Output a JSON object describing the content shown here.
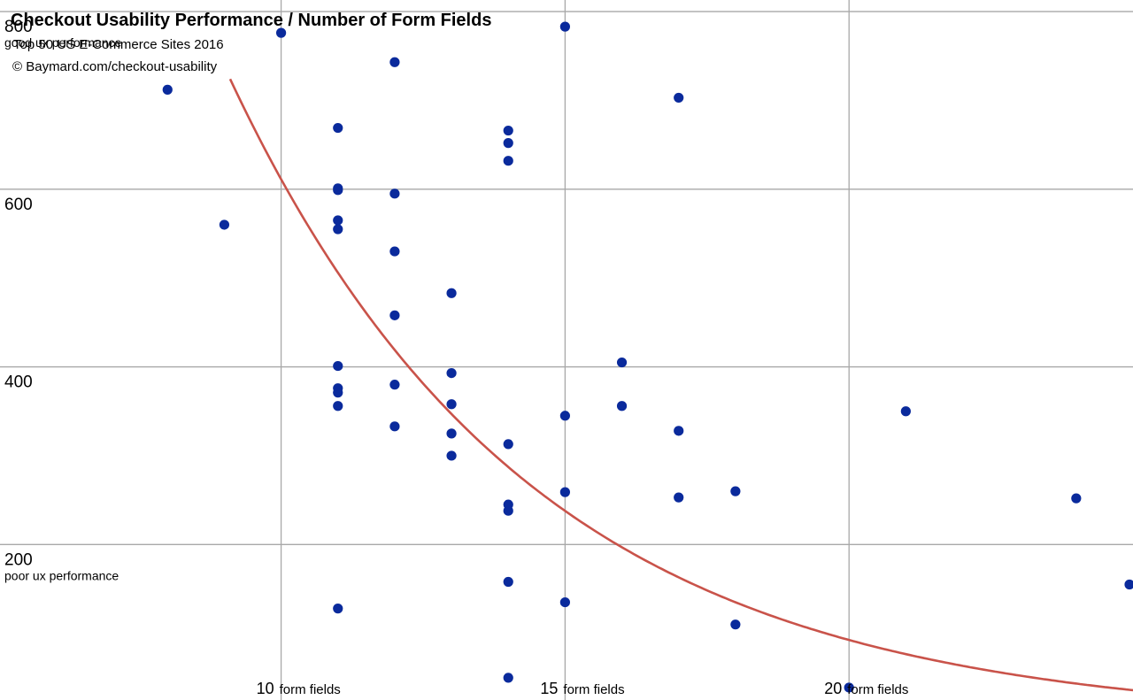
{
  "chart_data": {
    "type": "scatter",
    "title": "Checkout Usability Performance / Number of Form Fields",
    "subtitle": "Top 50 US E-Commerce Sites 2016",
    "credit": "© Baymard.com/checkout-usability",
    "x_ticks": [
      {
        "value": 10,
        "label": "10",
        "unit": "form fields"
      },
      {
        "value": 15,
        "label": "15",
        "unit": "form fields"
      },
      {
        "value": 20,
        "label": "20",
        "unit": "form fields"
      }
    ],
    "y_ticks": [
      {
        "value": 800,
        "label": "800",
        "note": "good ux performance"
      },
      {
        "value": 600,
        "label": "600",
        "note": ""
      },
      {
        "value": 400,
        "label": "400",
        "note": ""
      },
      {
        "value": 200,
        "label": "200",
        "note": "poor ux performance"
      }
    ],
    "xlim": [
      5.05,
      25
    ],
    "ylim": [
      25,
      813
    ],
    "grid": true,
    "point_color": "#0a2a9c",
    "curve_color": "#c9534a",
    "points": [
      [
        8,
        712
      ],
      [
        9,
        560
      ],
      [
        10,
        776
      ],
      [
        11,
        669
      ],
      [
        11,
        601
      ],
      [
        11,
        599
      ],
      [
        11,
        565
      ],
      [
        11,
        555
      ],
      [
        11,
        401
      ],
      [
        11,
        376
      ],
      [
        11,
        371
      ],
      [
        11,
        356
      ],
      [
        11,
        128
      ],
      [
        12,
        743
      ],
      [
        12,
        595
      ],
      [
        12,
        530
      ],
      [
        12,
        458
      ],
      [
        12,
        380
      ],
      [
        12,
        333
      ],
      [
        13,
        483
      ],
      [
        13,
        393
      ],
      [
        13,
        358
      ],
      [
        13,
        325
      ],
      [
        13,
        300
      ],
      [
        14,
        666
      ],
      [
        14,
        652
      ],
      [
        14,
        632
      ],
      [
        14,
        313
      ],
      [
        14,
        245
      ],
      [
        14,
        238
      ],
      [
        14,
        158
      ],
      [
        14,
        50
      ],
      [
        15,
        783
      ],
      [
        15,
        345
      ],
      [
        15,
        259
      ],
      [
        15,
        135
      ],
      [
        16,
        405
      ],
      [
        16,
        356
      ],
      [
        17,
        703
      ],
      [
        17,
        328
      ],
      [
        17,
        253
      ],
      [
        18,
        260
      ],
      [
        18,
        110
      ],
      [
        20,
        39
      ],
      [
        21,
        350
      ],
      [
        24,
        252
      ],
      [
        25,
        155
      ]
    ],
    "trend": {
      "type": "exponential",
      "a": 4035.8,
      "b": -0.18875
    }
  }
}
